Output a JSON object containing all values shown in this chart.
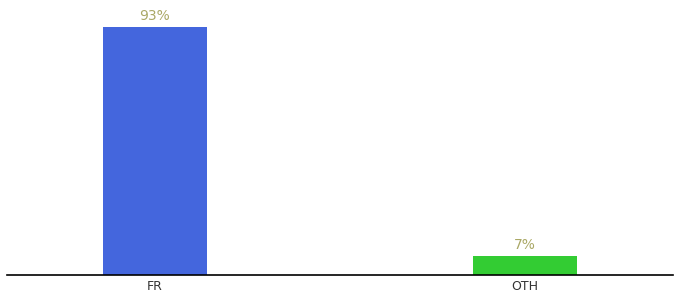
{
  "categories": [
    "FR",
    "OTH"
  ],
  "values": [
    93,
    7
  ],
  "bar_colors": [
    "#4466dd",
    "#33cc33"
  ],
  "labels": [
    "93%",
    "7%"
  ],
  "background_color": "#ffffff",
  "ylim": [
    0,
    100
  ],
  "bar_width": 0.28,
  "label_fontsize": 10,
  "tick_fontsize": 9,
  "label_color": "#aaa866"
}
